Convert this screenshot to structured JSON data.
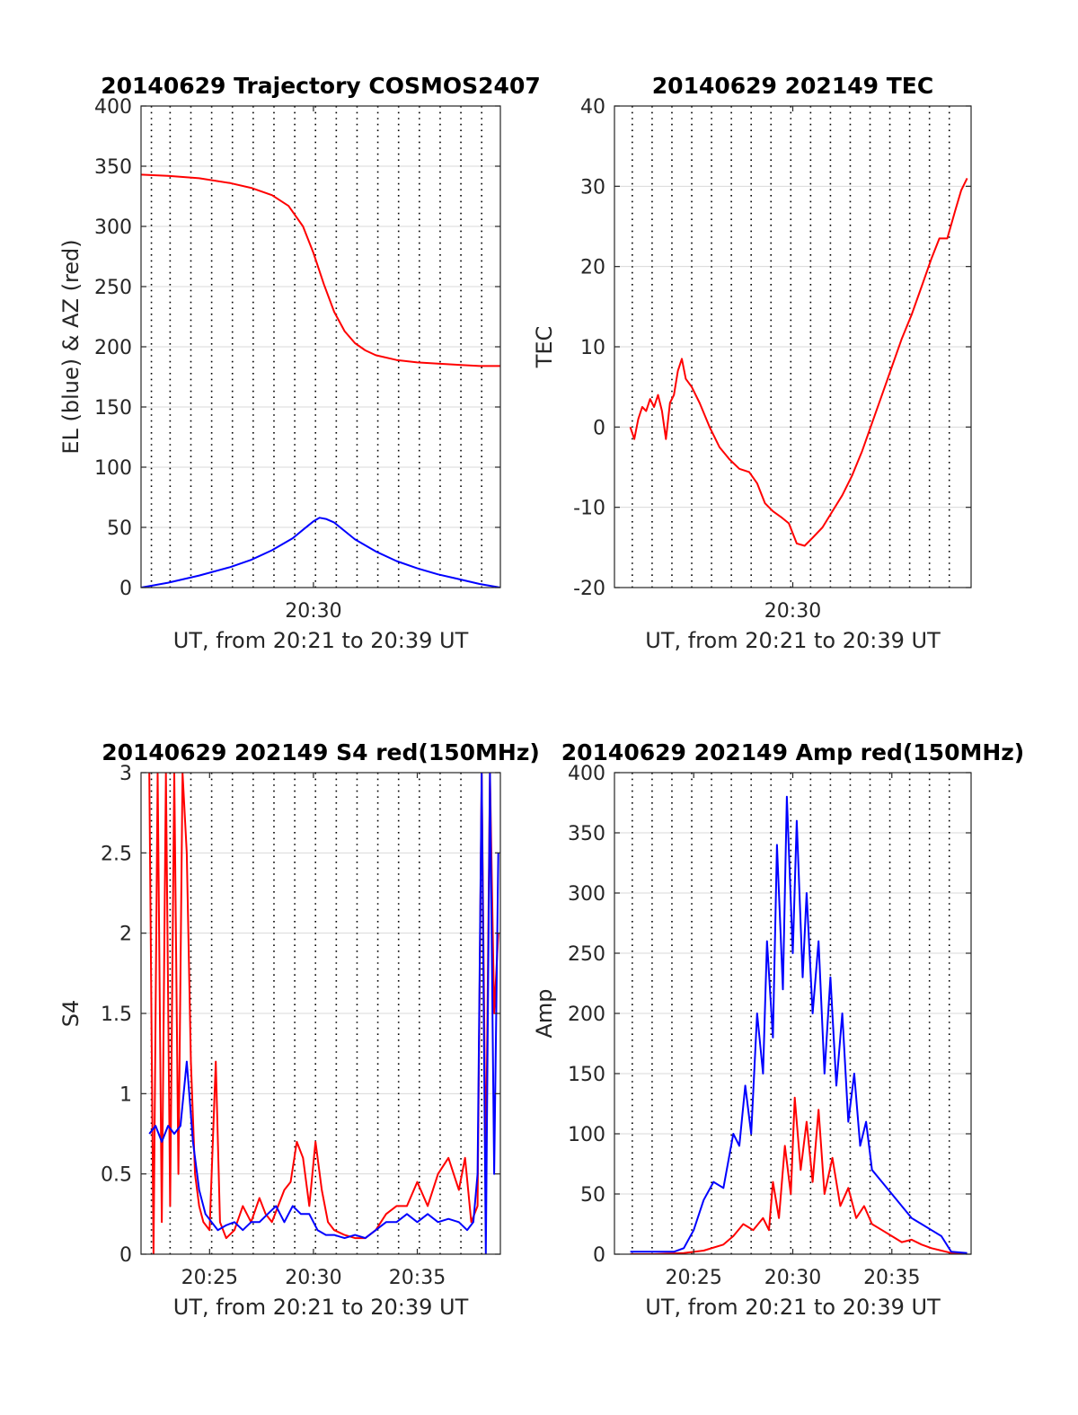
{
  "colors": {
    "el": "#0000ff",
    "az": "#ff0000",
    "grid": "#d9d9d9",
    "vline": "#000000"
  },
  "chart_data": [
    {
      "type": "line",
      "title": "20140629 Trajectory COSMOS2407",
      "xlabel": "UT, from 20:21 to 20:39 UT",
      "ylabel": "EL (blue) & AZ (red)",
      "xlim": [
        21.7,
        39.0
      ],
      "ylim": [
        0,
        400
      ],
      "yticks": [
        0,
        50,
        100,
        150,
        200,
        250,
        300,
        350,
        400
      ],
      "xticks": [
        {
          "value": 30.0,
          "label": "20:30"
        }
      ],
      "vlines": [
        22.2,
        23.1,
        24.1,
        25.1,
        26.1,
        27.1,
        28.1,
        29.1,
        30.1,
        31.1,
        32.1,
        33.1,
        34.1,
        35.1,
        36.1,
        37.1,
        38.1
      ],
      "grid": "horizontal",
      "series": [
        {
          "color": "#ff0000",
          "x": [
            21.7,
            23,
            24.5,
            26,
            27,
            28,
            28.8,
            29.5,
            30,
            30.5,
            31,
            31.5,
            32,
            32.5,
            33,
            34,
            35,
            36,
            37,
            38,
            39
          ],
          "y": [
            343,
            342,
            340,
            336,
            332,
            326,
            317,
            300,
            278,
            252,
            229,
            213,
            203,
            197,
            193,
            189,
            187,
            186,
            185,
            184,
            184
          ]
        },
        {
          "color": "#0000ff",
          "x": [
            21.7,
            23,
            24.5,
            26,
            27,
            28,
            29,
            29.5,
            30,
            30.3,
            30.6,
            31,
            31.5,
            32,
            33,
            34,
            35,
            36,
            37,
            38,
            39
          ],
          "y": [
            0,
            4,
            10,
            17,
            23,
            31,
            41,
            48,
            55,
            58,
            57,
            54,
            47,
            40,
            30,
            22,
            16,
            11,
            7,
            3,
            0
          ]
        }
      ]
    },
    {
      "type": "line",
      "title": "20140629 202149 TEC",
      "xlabel": "UT, from 20:21 to 20:39 UT",
      "ylabel": "TEC",
      "xlim": [
        21.0,
        39.0
      ],
      "ylim": [
        -20,
        40
      ],
      "yticks": [
        -20,
        -10,
        0,
        10,
        20,
        30,
        40
      ],
      "xticks": [
        {
          "value": 30.0,
          "label": "20:30"
        }
      ],
      "vlines": [
        21.9,
        22.9,
        23.9,
        24.9,
        25.9,
        26.9,
        27.9,
        28.9,
        29.9,
        30.9,
        31.9,
        32.9,
        33.9,
        34.9,
        35.9,
        36.9,
        37.9
      ],
      "grid": "horizontal",
      "series": [
        {
          "color": "#ff0000",
          "x": [
            21.8,
            22.0,
            22.2,
            22.4,
            22.6,
            22.8,
            23.0,
            23.2,
            23.4,
            23.6,
            23.8,
            24.0,
            24.2,
            24.4,
            24.6,
            24.9,
            25.3,
            25.8,
            26.3,
            26.8,
            27.3,
            27.8,
            28.2,
            28.6,
            29.0,
            29.4,
            29.8,
            30.2,
            30.6,
            31.0,
            31.5,
            32.0,
            32.5,
            33.0,
            33.5,
            34.0,
            34.5,
            35.0,
            35.5,
            36.0,
            36.5,
            37.0,
            37.4,
            37.8,
            38.2,
            38.5,
            38.8
          ],
          "y": [
            0,
            -1.5,
            1,
            2.5,
            2,
            3.5,
            2.5,
            4,
            2,
            -1.5,
            3,
            4,
            7,
            8.5,
            6,
            5,
            3,
            0,
            -2.5,
            -4,
            -5.2,
            -5.6,
            -7,
            -9.5,
            -10.5,
            -11.2,
            -12,
            -14.5,
            -14.8,
            -13.8,
            -12.5,
            -10.5,
            -8.5,
            -6,
            -3,
            0.5,
            4,
            7.5,
            11,
            14,
            17.5,
            21,
            23.5,
            23.5,
            27,
            29.5,
            31
          ]
        }
      ]
    },
    {
      "type": "line",
      "title": "20140629 202149 S4 red(150MHz)",
      "xlabel": "UT, from 20:21 to 20:39 UT",
      "ylabel": "S4",
      "xlim": [
        21.7,
        39.0
      ],
      "ylim": [
        0,
        3
      ],
      "yticks": [
        0,
        0.5,
        1,
        1.5,
        2,
        2.5,
        3
      ],
      "xticks": [
        {
          "value": 25.0,
          "label": "20:25"
        },
        {
          "value": 30.0,
          "label": "20:30"
        },
        {
          "value": 35.0,
          "label": "20:35"
        }
      ],
      "vlines": [
        22.2,
        23.1,
        24.1,
        25.1,
        26.1,
        27.1,
        28.1,
        29.1,
        30.1,
        31.1,
        32.1,
        33.1,
        34.1,
        35.1,
        36.1,
        37.1,
        38.1
      ],
      "grid": "horizontal",
      "series": [
        {
          "color": "#ff0000",
          "x": [
            22.1,
            22.3,
            22.5,
            22.7,
            22.9,
            23.1,
            23.3,
            23.5,
            23.7,
            23.9,
            24.1,
            24.3,
            24.5,
            24.7,
            25.0,
            25.3,
            25.5,
            25.8,
            26.2,
            26.6,
            27.0,
            27.4,
            27.7,
            28.0,
            28.3,
            28.6,
            28.9,
            29.2,
            29.5,
            29.8,
            30.1,
            30.4,
            30.7,
            31.0,
            31.5,
            32.0,
            32.5,
            33.0,
            33.5,
            34.0,
            34.5,
            35.0,
            35.5,
            36.0,
            36.5,
            37.0,
            37.3,
            37.6,
            37.9,
            38.1,
            38.3,
            38.5,
            38.7,
            38.9
          ],
          "y": [
            3,
            0,
            3,
            0.2,
            3,
            0.3,
            3,
            0.5,
            3,
            2.5,
            1.2,
            0.5,
            0.3,
            0.2,
            0.15,
            1.2,
            0.2,
            0.1,
            0.15,
            0.3,
            0.2,
            0.35,
            0.25,
            0.2,
            0.3,
            0.4,
            0.45,
            0.7,
            0.6,
            0.3,
            0.7,
            0.4,
            0.2,
            0.15,
            0.12,
            0.1,
            0.1,
            0.15,
            0.25,
            0.3,
            0.3,
            0.45,
            0.3,
            0.5,
            0.6,
            0.4,
            0.6,
            0.2,
            0.3,
            3,
            0.5,
            3,
            1.5,
            2
          ]
        },
        {
          "color": "#0000ff",
          "x": [
            22.1,
            22.4,
            22.7,
            23.0,
            23.3,
            23.6,
            23.9,
            24.2,
            24.5,
            24.8,
            25.1,
            25.4,
            25.8,
            26.2,
            26.6,
            27.0,
            27.4,
            27.8,
            28.2,
            28.6,
            29.0,
            29.4,
            29.8,
            30.2,
            30.6,
            31.0,
            31.5,
            32.0,
            32.5,
            33.0,
            33.5,
            34.0,
            34.5,
            35.0,
            35.5,
            36.0,
            36.5,
            37.0,
            37.4,
            37.7,
            37.9,
            38.1,
            38.3,
            38.5,
            38.7,
            38.9
          ],
          "y": [
            0.75,
            0.8,
            0.7,
            0.8,
            0.75,
            0.8,
            1.2,
            0.7,
            0.4,
            0.25,
            0.2,
            0.15,
            0.18,
            0.2,
            0.15,
            0.2,
            0.2,
            0.25,
            0.3,
            0.2,
            0.3,
            0.25,
            0.25,
            0.15,
            0.12,
            0.12,
            0.1,
            0.12,
            0.1,
            0.15,
            0.2,
            0.2,
            0.25,
            0.2,
            0.25,
            0.2,
            0.22,
            0.2,
            0.15,
            0.2,
            0.5,
            3,
            0,
            3,
            0.5,
            2.5
          ]
        }
      ]
    },
    {
      "type": "line",
      "title": "20140629 202149 Amp red(150MHz)",
      "xlabel": "UT, from 20:21 to 20:39 UT",
      "ylabel": "Amp",
      "xlim": [
        21.0,
        39.0
      ],
      "ylim": [
        0,
        400
      ],
      "yticks": [
        0,
        50,
        100,
        150,
        200,
        250,
        300,
        350,
        400
      ],
      "xticks": [
        {
          "value": 25.0,
          "label": "20:25"
        },
        {
          "value": 30.0,
          "label": "20:30"
        },
        {
          "value": 35.0,
          "label": "20:35"
        }
      ],
      "vlines": [
        21.9,
        22.9,
        23.9,
        24.9,
        25.9,
        26.9,
        27.9,
        28.9,
        29.9,
        30.9,
        31.9,
        32.9,
        33.9,
        34.9,
        35.9,
        36.9,
        37.9
      ],
      "grid": "horizontal",
      "series": [
        {
          "color": "#ff0000",
          "x": [
            21.8,
            23.0,
            24.5,
            25.5,
            26.5,
            27.0,
            27.5,
            28.0,
            28.5,
            28.8,
            29.0,
            29.3,
            29.6,
            29.9,
            30.1,
            30.4,
            30.7,
            31.0,
            31.3,
            31.6,
            32.0,
            32.4,
            32.8,
            33.2,
            33.6,
            34.0,
            34.5,
            35.0,
            35.5,
            36.0,
            36.5,
            37.0,
            37.5,
            38.0,
            38.8
          ],
          "y": [
            0,
            0,
            1,
            3,
            8,
            15,
            25,
            20,
            30,
            20,
            60,
            30,
            90,
            50,
            130,
            70,
            110,
            60,
            120,
            50,
            80,
            40,
            55,
            30,
            40,
            25,
            20,
            15,
            10,
            12,
            8,
            5,
            3,
            1,
            0
          ]
        },
        {
          "color": "#0000ff",
          "x": [
            21.8,
            23.0,
            24.0,
            24.5,
            25.0,
            25.5,
            26.0,
            26.5,
            27.0,
            27.3,
            27.6,
            27.9,
            28.2,
            28.5,
            28.7,
            29.0,
            29.2,
            29.5,
            29.7,
            30.0,
            30.2,
            30.5,
            30.7,
            31.0,
            31.3,
            31.6,
            31.9,
            32.2,
            32.5,
            32.8,
            33.1,
            33.4,
            33.7,
            34.0,
            34.5,
            35.0,
            35.5,
            36.0,
            36.5,
            37.0,
            37.5,
            38.0,
            38.8
          ],
          "y": [
            2,
            2,
            2,
            5,
            20,
            45,
            60,
            55,
            100,
            90,
            140,
            100,
            200,
            150,
            260,
            180,
            340,
            220,
            380,
            250,
            360,
            230,
            300,
            200,
            260,
            150,
            230,
            140,
            200,
            110,
            150,
            90,
            110,
            70,
            60,
            50,
            40,
            30,
            25,
            20,
            15,
            2,
            1
          ]
        }
      ]
    }
  ]
}
